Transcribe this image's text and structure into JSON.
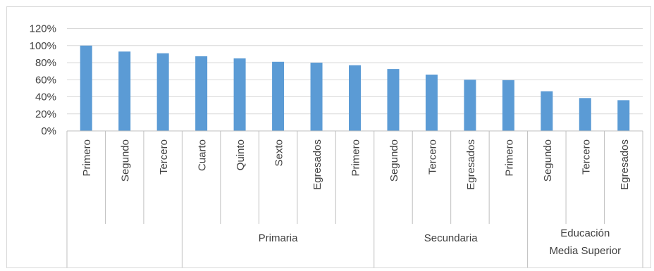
{
  "chart_data": {
    "type": "bar",
    "title": "",
    "xlabel": "",
    "ylabel": "",
    "ylim": [
      0,
      1.2
    ],
    "yticks": [
      "0%",
      "20%",
      "40%",
      "60%",
      "80%",
      "100%",
      "120%"
    ],
    "grid": true,
    "legend": "none",
    "bar_color": "#5b9bd5",
    "categories": [
      "Primero",
      "Segundo",
      "Tercero",
      "Cuarto",
      "Quinto",
      "Sexto",
      "Egresados",
      "Primero",
      "Segundo",
      "Tercero",
      "Egresados",
      "Primero",
      "Segundo",
      "Tercero",
      "Egresados"
    ],
    "values": [
      1.0,
      0.93,
      0.91,
      0.875,
      0.85,
      0.81,
      0.8,
      0.77,
      0.725,
      0.66,
      0.6,
      0.595,
      0.465,
      0.385,
      0.36
    ],
    "groups": [
      {
        "label": "",
        "start": 0,
        "count": 3
      },
      {
        "label": "Primaria",
        "start": 3,
        "count": 5
      },
      {
        "label": "Secundaria",
        "start": 8,
        "count": 4
      },
      {
        "label": "Educación\nMedia Superior",
        "start": 12,
        "count": 3
      }
    ]
  }
}
